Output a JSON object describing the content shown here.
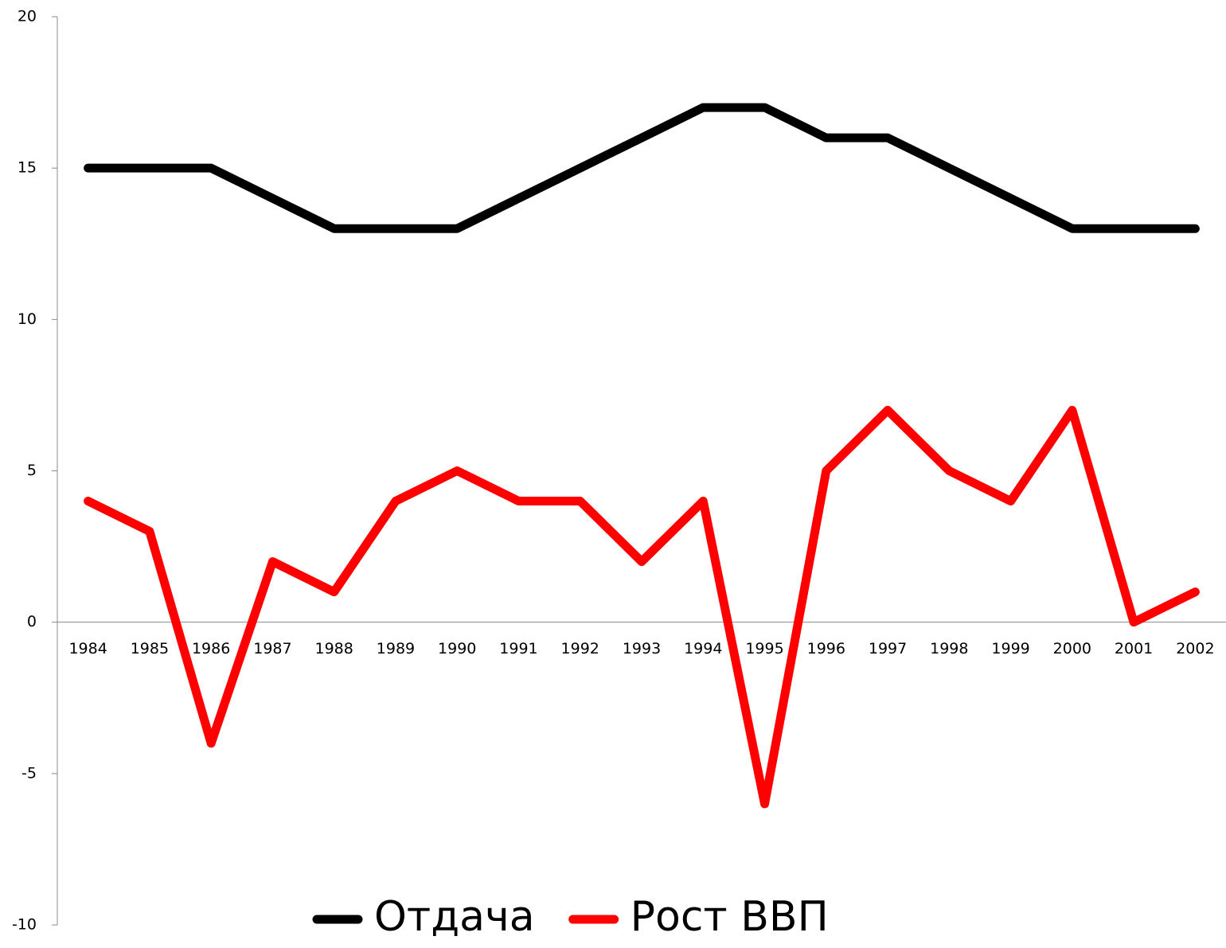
{
  "chart_data": {
    "type": "line",
    "categories": [
      "1984",
      "1985",
      "1986",
      "1987",
      "1988",
      "1989",
      "1990",
      "1991",
      "1992",
      "1993",
      "1994",
      "1995",
      "1996",
      "1997",
      "1998",
      "1999",
      "2000",
      "2001",
      "2002"
    ],
    "series": [
      {
        "name": "Отдача",
        "color": "#000000",
        "values": [
          15,
          15,
          15,
          14,
          13,
          13,
          13,
          14,
          15,
          16,
          17,
          17,
          16,
          16,
          15,
          14,
          13,
          13,
          13
        ]
      },
      {
        "name": "Рост ВВП",
        "color": "#ff0000",
        "values": [
          4,
          3,
          -4,
          2,
          1,
          4,
          5,
          4,
          4,
          2,
          4,
          -6,
          5,
          7,
          5,
          4,
          7,
          0,
          1
        ]
      }
    ],
    "ylim": [
      -10,
      20
    ],
    "yticks": [
      -10,
      -5,
      0,
      5,
      10,
      15,
      20
    ],
    "legend": "bottom"
  }
}
